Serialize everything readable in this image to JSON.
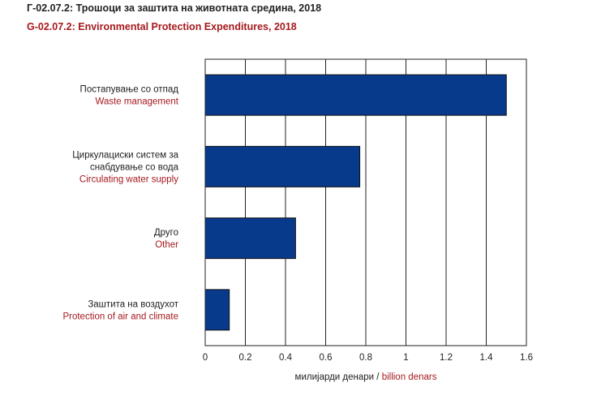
{
  "header": {
    "title_mk": "Г-02.07.2: Трошоци за заштита на животната средина, 2018",
    "title_en": "G-02.07.2: Environmental Protection Expenditures, 2018"
  },
  "chart_data": {
    "type": "bar",
    "orientation": "horizontal",
    "categories": [
      {
        "mk": [
          "Постапување со отпад"
        ],
        "en": [
          "Waste management"
        ]
      },
      {
        "mk": [
          "Циркулациски систем за",
          "снабдување со вода"
        ],
        "en": [
          "Circulating water supply"
        ]
      },
      {
        "mk": [
          "Друго"
        ],
        "en": [
          "Other"
        ]
      },
      {
        "mk": [
          "Заштита на воздухот"
        ],
        "en": [
          "Protection of air and climate"
        ]
      }
    ],
    "values": [
      1.5,
      0.77,
      0.45,
      0.12
    ],
    "xlim": [
      0,
      1.6
    ],
    "xticks": [
      "0",
      "0.2",
      "0.4",
      "0.6",
      "0.8",
      "1",
      "1.2",
      "1.4",
      "1.6"
    ],
    "xlabel_mk": "милијарди денари / ",
    "xlabel_en": "billion denars",
    "grid": true,
    "bar_color": "#083a8c",
    "label_en_color": "#a6191e"
  }
}
